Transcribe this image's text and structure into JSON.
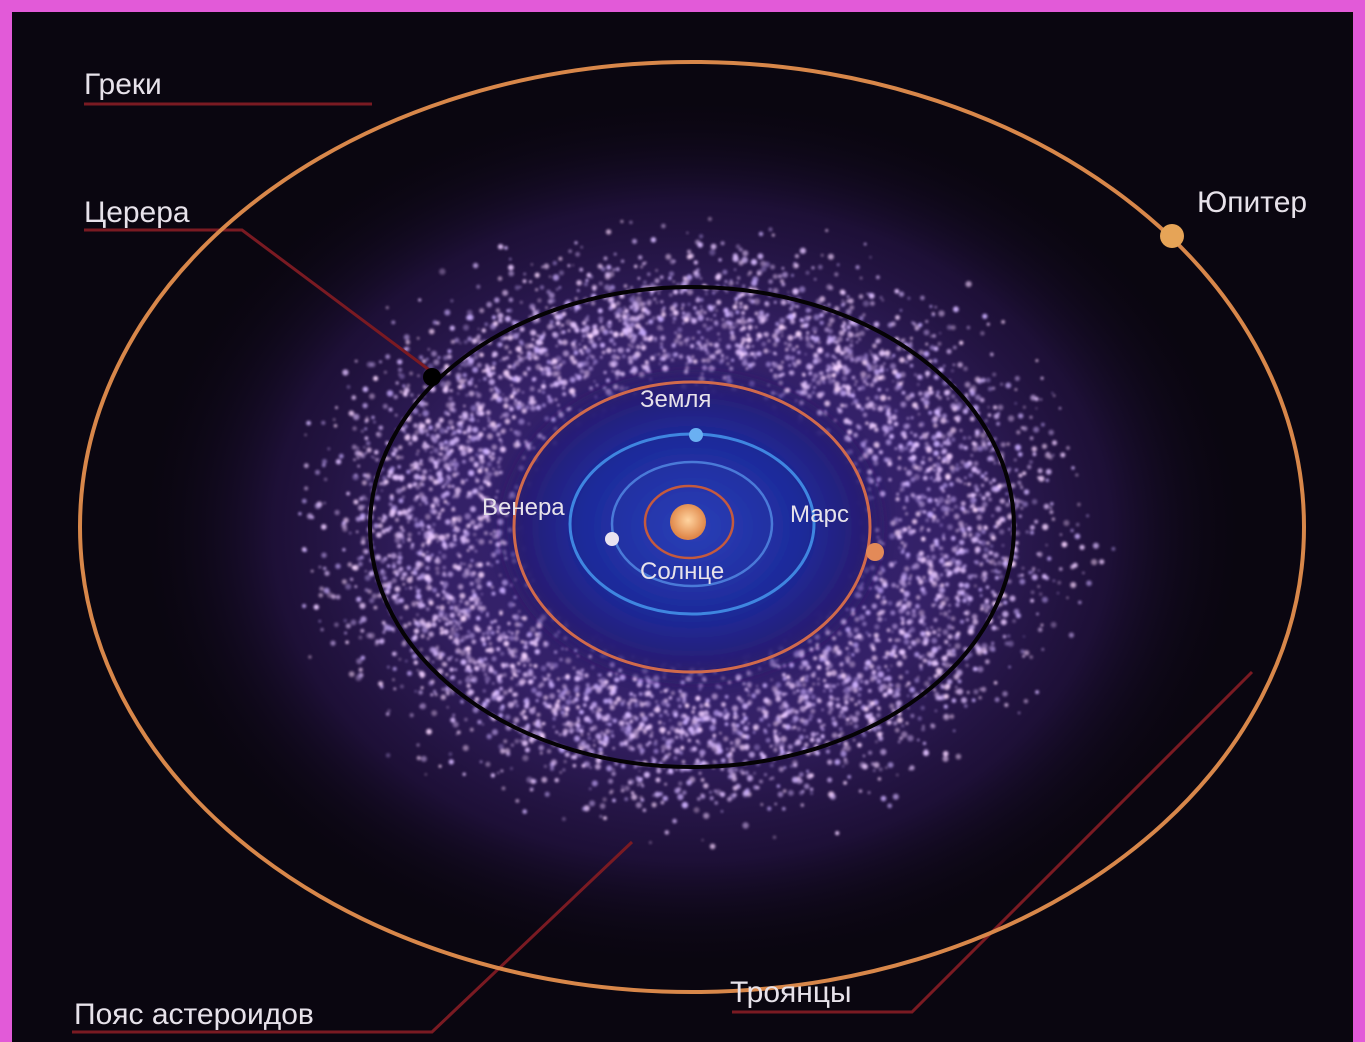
{
  "colors": {
    "border": "#e25ad8",
    "background": "#0a0610",
    "jupiter_orbit": "#d8874a",
    "belt_orbit": "#050305",
    "mars_orbit": "#d06a4c",
    "earth_orbit": "#3f86e0",
    "sun": "#f0a060",
    "leader_lines": "#7a1a22"
  },
  "labels": {
    "greeks": "Греки",
    "ceres": "Церера",
    "jupiter": "Юпитер",
    "earth": "Земля",
    "venus": "Венера",
    "mars": "Марс",
    "sun": "Солнце",
    "trojans": "Троянцы",
    "asteroid_belt": "Пояс астероидов"
  }
}
